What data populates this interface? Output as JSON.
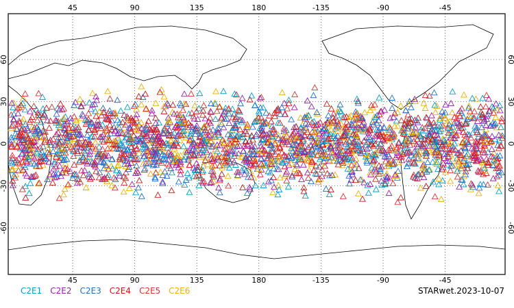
{
  "map": {
    "top_ticks": [
      "45",
      "90",
      "135",
      "180",
      "-135",
      "-90",
      "-45"
    ],
    "bottom_ticks": [
      "45",
      "90",
      "135",
      "180",
      "-135",
      "-90",
      "-45"
    ],
    "left_ticks": [
      "60",
      "30",
      "0",
      "-30",
      "-60"
    ],
    "right_ticks": [
      "60",
      "30",
      "0",
      "-30",
      "-60"
    ]
  },
  "legend": [
    {
      "label": "C2E1",
      "color": "#00a0d0"
    },
    {
      "label": "C2E2",
      "color": "#9a20b0"
    },
    {
      "label": "C2E3",
      "color": "#1f6fd0"
    },
    {
      "label": "C2E4",
      "color": "#d01818"
    },
    {
      "label": "C2E5",
      "color": "#e03030"
    },
    {
      "label": "C2E6",
      "color": "#f0b000"
    }
  ],
  "stamp": "STARwet.2023-10-07"
}
